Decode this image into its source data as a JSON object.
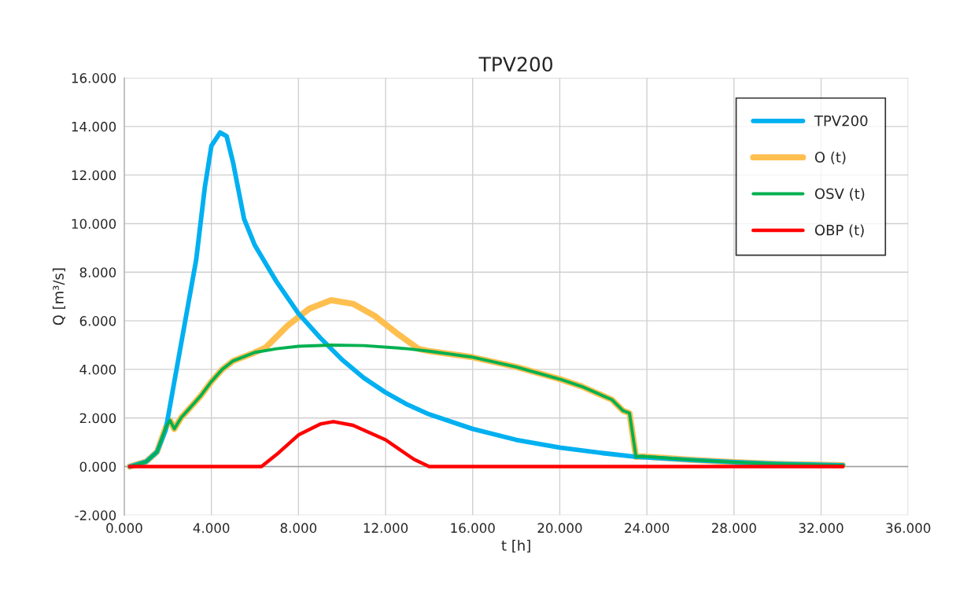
{
  "chart_data": {
    "type": "line",
    "title": "TPV200",
    "xlabel": "t [h]",
    "ylabel": "Q [m³/s]",
    "xlim": [
      0,
      36
    ],
    "ylim": [
      -2,
      16
    ],
    "xticks": [
      {
        "value": 0,
        "label": "0.000"
      },
      {
        "value": 4,
        "label": "4.000"
      },
      {
        "value": 8,
        "label": "8.000"
      },
      {
        "value": 12,
        "label": "12.000"
      },
      {
        "value": 16,
        "label": "16.000"
      },
      {
        "value": 20,
        "label": "20.000"
      },
      {
        "value": 24,
        "label": "24.000"
      },
      {
        "value": 28,
        "label": "28.000"
      },
      {
        "value": 32,
        "label": "32.000"
      },
      {
        "value": 36,
        "label": "36.000"
      }
    ],
    "yticks": [
      {
        "value": -2,
        "label": "-2.000"
      },
      {
        "value": 0,
        "label": "0.000"
      },
      {
        "value": 2,
        "label": "2.000"
      },
      {
        "value": 4,
        "label": "4.000"
      },
      {
        "value": 6,
        "label": "6.000"
      },
      {
        "value": 8,
        "label": "8.000"
      },
      {
        "value": 10,
        "label": "10.000"
      },
      {
        "value": 12,
        "label": "12.000"
      },
      {
        "value": 14,
        "label": "14.000"
      },
      {
        "value": 16,
        "label": "16.000"
      }
    ],
    "grid": true,
    "legend": "top right",
    "marker": "none",
    "line_style": "solid",
    "series": [
      {
        "name": "TPV200",
        "color": "#00b0f0",
        "x": [
          0.25,
          1,
          1.5,
          1.9,
          2.2,
          2.8,
          3.3,
          3.7,
          4.0,
          4.4,
          4.7,
          5.0,
          5.5,
          6,
          7,
          8,
          9,
          10,
          11,
          12,
          13,
          14,
          16,
          18,
          20,
          22,
          23.5,
          26,
          28,
          30,
          33
        ],
        "values": [
          0,
          0.2,
          0.6,
          1.5,
          3,
          6,
          8.5,
          11.5,
          13.2,
          13.75,
          13.6,
          12.5,
          10.2,
          9.1,
          7.6,
          6.3,
          5.3,
          4.4,
          3.65,
          3.05,
          2.55,
          2.15,
          1.55,
          1.1,
          0.78,
          0.55,
          0.4,
          0.27,
          0.18,
          0.11,
          0.05
        ]
      },
      {
        "name": "O (t)",
        "color": "#ffbf4f",
        "x": [
          0.25,
          1,
          1.5,
          1.9,
          2.1,
          2.3,
          2.6,
          3,
          3.5,
          4,
          4.5,
          5,
          6,
          6.5,
          7.5,
          8.5,
          9.5,
          10.5,
          11.5,
          12.5,
          13.5,
          14,
          16,
          18,
          20,
          21,
          22.4,
          22.9,
          23.2,
          23.5,
          23.8,
          26,
          28,
          30,
          33
        ],
        "values": [
          0,
          0.2,
          0.6,
          1.6,
          1.9,
          1.55,
          2.0,
          2.4,
          2.9,
          3.5,
          4.0,
          4.35,
          4.7,
          4.9,
          5.8,
          6.5,
          6.85,
          6.7,
          6.2,
          5.5,
          4.85,
          4.75,
          4.5,
          4.1,
          3.6,
          3.3,
          2.75,
          2.3,
          2.2,
          0.4,
          0.42,
          0.28,
          0.18,
          0.11,
          0.05
        ]
      },
      {
        "name": "OSV (t)",
        "color": "#00b050",
        "x": [
          0.25,
          1,
          1.5,
          1.9,
          2.1,
          2.3,
          2.6,
          3,
          3.5,
          4,
          4.5,
          5,
          6,
          7,
          8,
          9.5,
          11,
          13,
          14,
          16,
          18,
          20,
          21,
          22.4,
          22.9,
          23.2,
          23.5,
          23.8,
          26,
          28,
          30,
          33
        ],
        "values": [
          0,
          0.2,
          0.6,
          1.6,
          1.9,
          1.55,
          2.0,
          2.4,
          2.9,
          3.5,
          4.0,
          4.35,
          4.7,
          4.85,
          4.95,
          5.0,
          4.98,
          4.85,
          4.75,
          4.5,
          4.1,
          3.6,
          3.3,
          2.75,
          2.3,
          2.2,
          0.4,
          0.42,
          0.28,
          0.18,
          0.11,
          0.05
        ]
      },
      {
        "name": "OBP (t)",
        "color": "#ff0000",
        "x": [
          0.25,
          6.3,
          7,
          8,
          9,
          9.6,
          10.5,
          12,
          13.3,
          14,
          33
        ],
        "values": [
          0,
          0,
          0.5,
          1.3,
          1.75,
          1.85,
          1.7,
          1.1,
          0.3,
          0,
          0
        ]
      }
    ]
  }
}
